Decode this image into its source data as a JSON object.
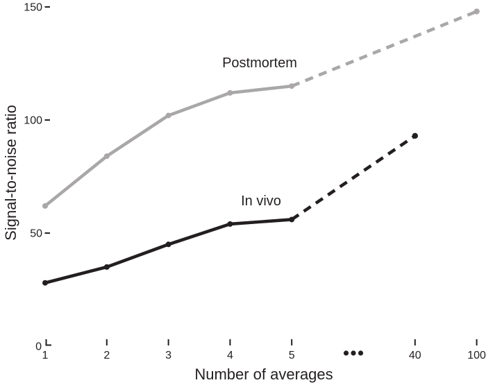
{
  "chart_data": {
    "type": "line",
    "title": "",
    "xlabel": "Number of averages",
    "ylabel": "Signal-to-noise ratio",
    "x_categories": [
      "1",
      "2",
      "3",
      "4",
      "5",
      "•••",
      "40",
      "100"
    ],
    "x_break_marker": "•••",
    "y_ticks": [
      0,
      50,
      100,
      150
    ],
    "ylim": [
      0,
      155
    ],
    "grid": "off",
    "legend_position": "inline-annotations",
    "axis_color": "#231f20",
    "layout_note": "x axis is categorical with a break (dots) between 5 and 40; dashed segments are extrapolations ending in a marker",
    "series": [
      {
        "name": "Postmortem",
        "color": "#a9a7a8",
        "line_style": "solid then dashed extrapolation",
        "solid_points": {
          "x": [
            1,
            2,
            3,
            4,
            5
          ],
          "y": [
            62,
            84,
            102,
            112,
            115
          ]
        },
        "dashed_points": {
          "x": [
            5,
            100
          ],
          "y": [
            115,
            148
          ]
        }
      },
      {
        "name": "In vivo",
        "color": "#231f20",
        "line_style": "solid then dashed extrapolation",
        "solid_points": {
          "x": [
            1,
            2,
            3,
            4,
            5
          ],
          "y": [
            28,
            35,
            45,
            54,
            56
          ]
        },
        "dashed_points": {
          "x": [
            5,
            40
          ],
          "y": [
            56,
            93
          ]
        }
      }
    ]
  }
}
